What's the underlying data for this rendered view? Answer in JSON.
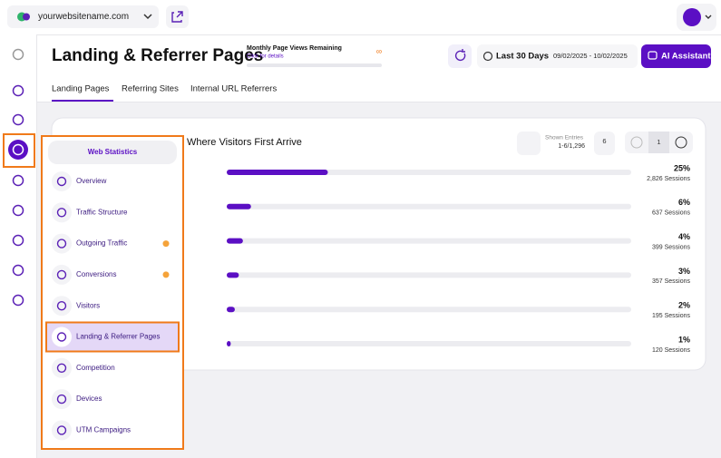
{
  "top_bar": {
    "site": "yourwebsitename.com"
  },
  "header": {
    "title": "Landing & Referrer Pages",
    "quota_title": "Monthly Page Views Remaining",
    "quota_link": "Click for details",
    "quota_value": "∞",
    "period": "Last 30 Days",
    "date_range": "09/02/2025 - 10/02/2025",
    "ai_button": "AI Assistant"
  },
  "tabs": [
    "Landing Pages",
    "Referring Sites",
    "Internal URL Referrers"
  ],
  "card": {
    "title": "Where Visitors First Arrive",
    "shown_entries_label": "Shown Entries",
    "shown_entries": "1-6/1,296",
    "page_size": "6",
    "page": "1",
    "rows": [
      {
        "percent": 25,
        "percent_label": "25%",
        "sessions": "2,826 Sessions"
      },
      {
        "percent": 6,
        "percent_label": "6%",
        "sessions": "637 Sessions"
      },
      {
        "percent": 4,
        "percent_label": "4%",
        "sessions": "399 Sessions"
      },
      {
        "percent": 3,
        "percent_label": "3%",
        "sessions": "357 Sessions"
      },
      {
        "percent": 2,
        "percent_label": "2%",
        "sessions": "195 Sessions"
      },
      {
        "percent": 1,
        "percent_label": "1%",
        "sessions": "120 Sessions"
      }
    ]
  },
  "menu": {
    "title": "Web Statistics",
    "items": [
      "Overview",
      "Traffic Structure",
      "Outgoing Traffic",
      "Conversions",
      "Visitors",
      "Landing & Referrer Pages",
      "Competition",
      "Devices",
      "UTM Campaigns"
    ]
  }
}
